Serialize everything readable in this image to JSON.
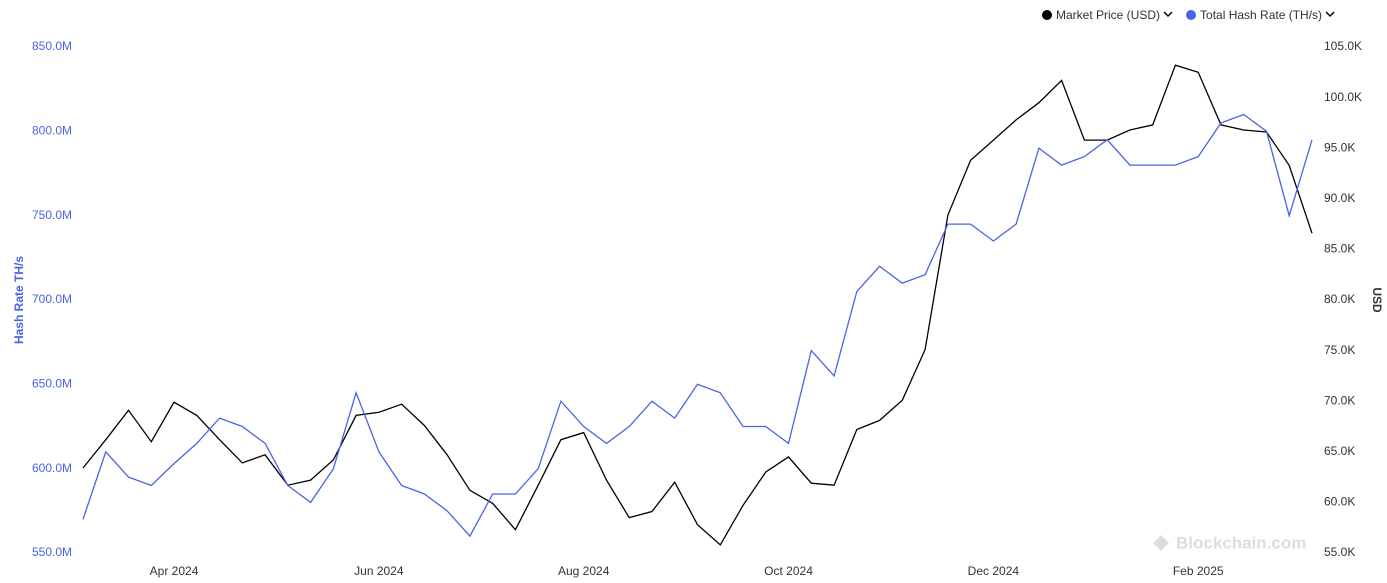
{
  "chart_data": {
    "type": "line",
    "categories": [
      null,
      null,
      null,
      null,
      "Apr 2024",
      null,
      null,
      null,
      null,
      null,
      null,
      null,
      null,
      "Jun 2024",
      null,
      null,
      null,
      null,
      null,
      null,
      null,
      null,
      "Aug 2024",
      null,
      null,
      null,
      null,
      null,
      null,
      null,
      null,
      "Oct 2024",
      null,
      null,
      null,
      null,
      null,
      null,
      null,
      null,
      "Dec 2024",
      null,
      null,
      null,
      null,
      null,
      null,
      null,
      null,
      "Feb 2025",
      null,
      null,
      null,
      null,
      null
    ],
    "series": [
      {
        "name": "Market Price (USD)",
        "color": "#000000",
        "axis": "y2",
        "values": [
          63400,
          66200,
          69100,
          66000,
          69900,
          68600,
          66200,
          63900,
          64700,
          61700,
          62200,
          64200,
          68600,
          68900,
          69700,
          67600,
          64700,
          61200,
          59900,
          57300,
          61700,
          66200,
          66900,
          62200,
          58500,
          59100,
          62000,
          57800,
          55800,
          59700,
          63000,
          64500,
          61900,
          61700,
          67200,
          68100,
          70100,
          75100,
          88400,
          93800,
          95800,
          97800,
          99500,
          101700,
          95800,
          95800,
          96800,
          97300,
          103200,
          102500,
          97300,
          96800,
          96600,
          93300,
          86600
        ]
      },
      {
        "name": "Total Hash Rate (TH/s)",
        "color": "#4a63e6",
        "axis": "y",
        "values": [
          570000000,
          610000000,
          595000000,
          590000000,
          603000000,
          615000000,
          630000000,
          625000000,
          615000000,
          590000000,
          580000000,
          600000000,
          645000000,
          610000000,
          590000000,
          585000000,
          575000000,
          560000000,
          585000000,
          585000000,
          600000000,
          640000000,
          625000000,
          615000000,
          625000000,
          640000000,
          630000000,
          650000000,
          645000000,
          625000000,
          625000000,
          615000000,
          670000000,
          655000000,
          705000000,
          720000000,
          710000000,
          715000000,
          745000000,
          745000000,
          735000000,
          745000000,
          790000000,
          780000000,
          785000000,
          795000000,
          780000000,
          780000000,
          780000000,
          785000000,
          805000000,
          810000000,
          800000000,
          750000000,
          795000000
        ]
      }
    ],
    "ylabel": "Hash Rate TH/s",
    "y2label": "USD",
    "ylim": [
      550000000,
      850000000
    ],
    "yticks": [
      {
        "value": 550000000,
        "label": "550.0M"
      },
      {
        "value": 600000000,
        "label": "600.0M"
      },
      {
        "value": 650000000,
        "label": "650.0M"
      },
      {
        "value": 700000000,
        "label": "700.0M"
      },
      {
        "value": 750000000,
        "label": "750.0M"
      },
      {
        "value": 800000000,
        "label": "800.0M"
      },
      {
        "value": 850000000,
        "label": "850.0M"
      }
    ],
    "y2lim": [
      55000,
      105000
    ],
    "y2ticks": [
      {
        "value": 55000,
        "label": "55.0K"
      },
      {
        "value": 60000,
        "label": "60.0K"
      },
      {
        "value": 65000,
        "label": "65.0K"
      },
      {
        "value": 70000,
        "label": "70.0K"
      },
      {
        "value": 75000,
        "label": "75.0K"
      },
      {
        "value": 80000,
        "label": "80.0K"
      },
      {
        "value": 85000,
        "label": "85.0K"
      },
      {
        "value": 90000,
        "label": "90.0K"
      },
      {
        "value": 95000,
        "label": "95.0K"
      },
      {
        "value": 100000,
        "label": "100.0K"
      },
      {
        "value": 105000,
        "label": "105.0K"
      }
    ],
    "legend": "top-right",
    "watermark": "Blockchain.com"
  }
}
